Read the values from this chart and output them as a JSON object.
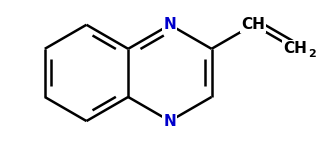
{
  "background": "#ffffff",
  "line_color": "#000000",
  "N_color": "#0000cc",
  "line_width": 1.8,
  "fig_width": 3.27,
  "fig_height": 1.41,
  "dpi": 100,
  "xlim": [
    -1.6,
    4.8
  ],
  "ylim": [
    -1.4,
    1.5
  ]
}
